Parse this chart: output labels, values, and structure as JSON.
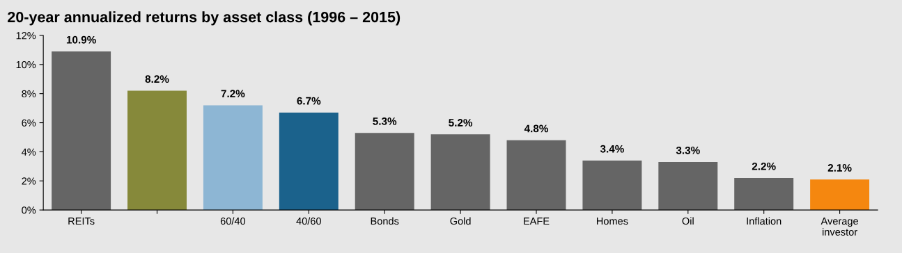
{
  "chart_data": {
    "type": "bar",
    "title": "20-year annualized returns by asset class (1996 – 2015)",
    "categories": [
      "REITs",
      null,
      "60/40",
      "40/60",
      "Bonds",
      "Gold",
      "EAFE",
      "Homes",
      "Oil",
      "Inflation",
      "Average\ninvestor"
    ],
    "values": [
      10.9,
      8.2,
      7.2,
      6.7,
      5.3,
      5.2,
      4.8,
      3.4,
      3.3,
      2.2,
      2.1
    ],
    "colors": [
      "#656565",
      "#86893a",
      "#8db6d4",
      "#1b628c",
      "#656565",
      "#656565",
      "#656565",
      "#656565",
      "#656565",
      "#656565",
      "#f5870f"
    ],
    "value_labels": [
      "10.9%",
      "8.2%",
      "7.2%",
      "6.7%",
      "5.3%",
      "5.2%",
      "4.8%",
      "3.4%",
      "3.3%",
      "2.2%",
      "2.1%"
    ],
    "ylim": [
      0,
      12
    ],
    "yticks": [
      {
        "value": 0,
        "label": "0%"
      },
      {
        "value": 2,
        "label": "2%"
      },
      {
        "value": 4,
        "label": "4%"
      },
      {
        "value": 6,
        "label": "6%"
      },
      {
        "value": 8,
        "label": "8%"
      },
      {
        "value": 10,
        "label": "10%"
      },
      {
        "value": 12,
        "label": "12%"
      }
    ],
    "grid": false,
    "legend": false
  }
}
